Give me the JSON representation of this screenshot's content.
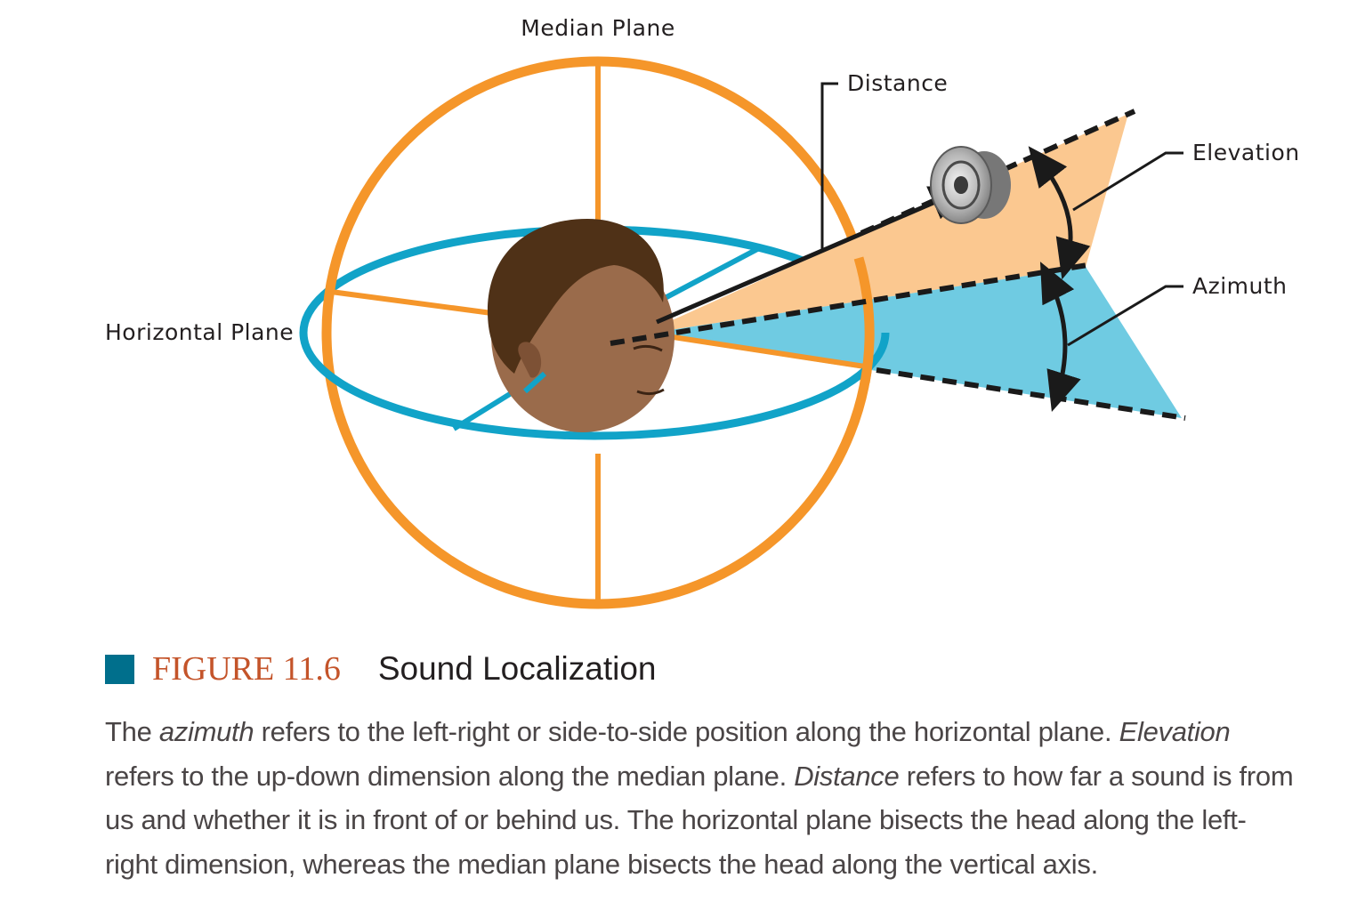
{
  "colors": {
    "median_plane": "#f5962a",
    "horizontal_plane": "#11a3c8",
    "elevation_fill": "#fbc890",
    "azimuth_fill": "#6fcbe2",
    "figure_square": "#006f8c",
    "figure_number": "#c4542a",
    "head_skin": "#9a6b4b",
    "hair": "#4f3117"
  },
  "labels": {
    "median_plane": "Median Plane",
    "horizontal_plane": "Horizontal Plane",
    "distance": "Distance",
    "elevation": "Elevation",
    "azimuth": "Azimuth"
  },
  "icons": {
    "sound_source": "speaker-icon",
    "listener": "head-icon"
  },
  "caption": {
    "figure_number": "FIGURE 11.6",
    "title": "Sound Localization",
    "lines": [
      [
        "The ",
        {
          "i": "azimuth"
        },
        " refers to the left-right or side-to-side position along the horizontal plane. ",
        {
          "i": "Elevation"
        }
      ],
      [
        "refers to the up-down dimension along the median plane. ",
        {
          "i": "Distance"
        },
        " refers to how far a sound is from"
      ],
      [
        "us and whether it is in front of or behind us. The horizontal plane bisects the head along the left-"
      ],
      [
        "right dimension, whereas the median plane bisects the head along the vertical axis."
      ]
    ]
  }
}
